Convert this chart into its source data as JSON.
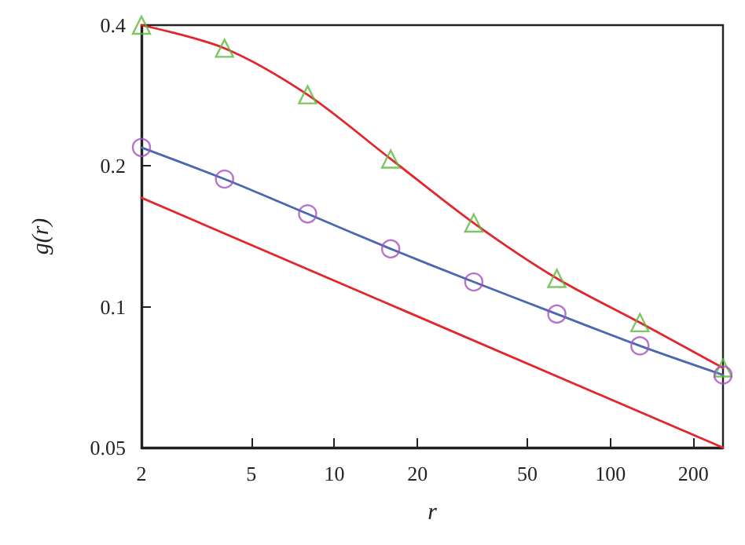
{
  "chart_data": {
    "type": "scatter",
    "xlabel": "r",
    "ylabel": "g(r)",
    "log": "xy",
    "xlim": [
      2,
      256
    ],
    "ylim": [
      0.05,
      0.4
    ],
    "xticks": [
      2,
      5,
      10,
      20,
      50,
      100,
      200
    ],
    "yticks": [
      0.05,
      0.1,
      0.2,
      0.4
    ],
    "grid": false,
    "x": [
      2,
      4,
      8,
      16,
      32,
      64,
      128,
      256
    ],
    "series": [
      {
        "marker": "triangle",
        "color": "#5db83a",
        "values": [
          0.4,
          0.357,
          0.284,
          0.207,
          0.151,
          0.115,
          0.0925,
          0.074
        ]
      },
      {
        "type": "line",
        "marker": "none",
        "color": "#e3262c",
        "values": [
          0.4,
          0.357,
          0.284,
          0.207,
          0.151,
          0.115,
          0.0925,
          0.074
        ]
      },
      {
        "marker": "circle",
        "color": "#a450c4",
        "values": [
          0.219,
          0.1875,
          0.158,
          0.133,
          0.113,
          0.0965,
          0.0825,
          0.0715
        ]
      },
      {
        "type": "line",
        "marker": "none",
        "color": "#4a68b0",
        "values": [
          0.219,
          0.1875,
          0.158,
          0.133,
          0.113,
          0.0965,
          0.0825,
          0.0715
        ]
      },
      {
        "type": "line",
        "marker": "none",
        "color": "#e3262c",
        "x": [
          2,
          256
        ],
        "values": [
          0.171,
          0.05
        ]
      }
    ]
  }
}
